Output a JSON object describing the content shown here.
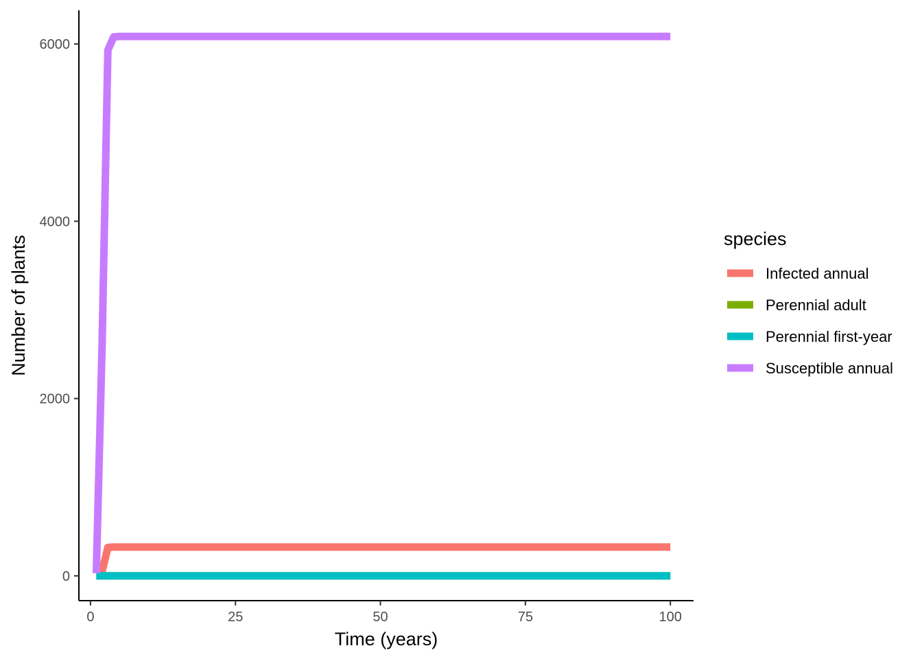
{
  "chart_data": {
    "type": "line",
    "xlabel": "Time (years)",
    "ylabel": "Number of plants",
    "xlim": [
      -2,
      104
    ],
    "ylim": [
      -280,
      6380
    ],
    "x_ticks": [
      0,
      25,
      50,
      75,
      100
    ],
    "x_tick_labels": [
      "0",
      "25",
      "50",
      "75",
      "100"
    ],
    "y_ticks": [
      0,
      2000,
      4000,
      6000
    ],
    "y_tick_labels": [
      "0",
      "2000",
      "4000",
      "6000"
    ],
    "grid": false,
    "legend": {
      "title": "species",
      "position": "right"
    },
    "series": [
      {
        "name": "Infected annual",
        "color": "#F8766D",
        "x": [
          1,
          2,
          3,
          4,
          5,
          100
        ],
        "y": [
          30,
          50,
          320,
          325,
          325,
          325
        ]
      },
      {
        "name": "Perennial adult",
        "color": "#7CAE00",
        "x": [
          1,
          2,
          3,
          4,
          5,
          100
        ],
        "y": [
          0,
          0,
          0,
          0,
          0,
          0
        ]
      },
      {
        "name": "Perennial first-year",
        "color": "#00BFC4",
        "x": [
          1,
          2,
          3,
          4,
          5,
          100
        ],
        "y": [
          0,
          0,
          0,
          0,
          0,
          0
        ]
      },
      {
        "name": "Susceptible annual",
        "color": "#C77CFF",
        "x": [
          1,
          2,
          3,
          4,
          5,
          100
        ],
        "y": [
          30,
          2600,
          5930,
          6080,
          6085,
          6085
        ]
      }
    ]
  }
}
